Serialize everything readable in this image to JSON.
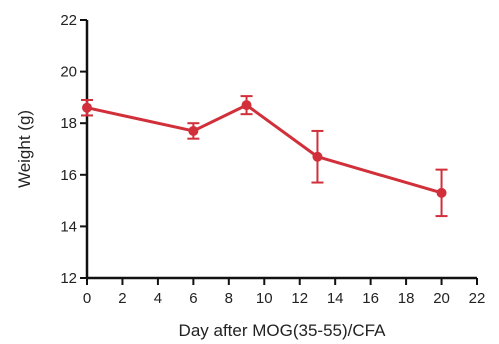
{
  "chart_data": {
    "type": "line",
    "title": "",
    "xlabel": "Day after MOG(35-55)/CFA",
    "ylabel": "Weight (g)",
    "xlim": [
      0,
      22
    ],
    "ylim": [
      12,
      22
    ],
    "xticks": [
      "0",
      "2",
      "4",
      "6",
      "8",
      "10",
      "12",
      "14",
      "16",
      "18",
      "20",
      "22"
    ],
    "yticks": [
      "12",
      "14",
      "16",
      "18",
      "20",
      "22"
    ],
    "grid": false,
    "legend": "none",
    "series": [
      {
        "color": "#d1303a",
        "x": [
          0,
          6,
          9,
          13,
          20
        ],
        "y": [
          18.6,
          17.7,
          18.7,
          16.7,
          15.3
        ],
        "error": [
          0.3,
          0.3,
          0.35,
          1.0,
          0.9
        ]
      }
    ]
  }
}
